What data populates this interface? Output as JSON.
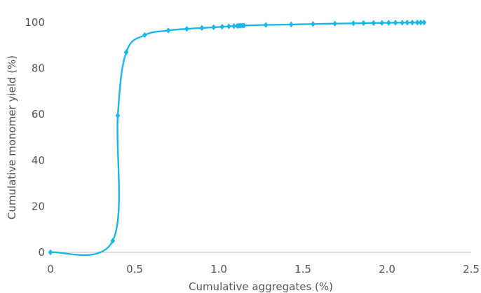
{
  "chart_data": {
    "type": "line",
    "xlabel": "Cumulative aggregates (%)",
    "ylabel": "Cumulative monomer yield (%)",
    "xlim": [
      0,
      2.5
    ],
    "ylim": [
      0,
      100
    ],
    "x_ticks": [
      "0",
      "0.5",
      "1.0",
      "1.5",
      "2.0",
      "2.5"
    ],
    "y_ticks": [
      "0",
      "20",
      "40",
      "60",
      "80",
      "100"
    ],
    "grid": false,
    "legend": "none",
    "marker": "diamond",
    "series": [
      {
        "color": "#1ab7e8",
        "points": [
          [
            0.0,
            0.0
          ],
          [
            0.37,
            5.0
          ],
          [
            0.4,
            59.5
          ],
          [
            0.45,
            87.0
          ],
          [
            0.56,
            94.5
          ],
          [
            0.7,
            96.5
          ],
          [
            0.81,
            97.2
          ],
          [
            0.9,
            97.6
          ],
          [
            0.97,
            97.9
          ],
          [
            1.02,
            98.1
          ],
          [
            1.06,
            98.3
          ],
          [
            1.09,
            98.4
          ],
          [
            1.11,
            98.5
          ],
          [
            1.12,
            98.55
          ],
          [
            1.13,
            98.6
          ],
          [
            1.14,
            98.6
          ],
          [
            1.15,
            98.65
          ],
          [
            1.28,
            98.9
          ],
          [
            1.43,
            99.1
          ],
          [
            1.56,
            99.3
          ],
          [
            1.69,
            99.5
          ],
          [
            1.8,
            99.6
          ],
          [
            1.86,
            99.7
          ],
          [
            1.92,
            99.75
          ],
          [
            1.97,
            99.8
          ],
          [
            2.01,
            99.85
          ],
          [
            2.05,
            99.88
          ],
          [
            2.09,
            99.9
          ],
          [
            2.12,
            99.92
          ],
          [
            2.15,
            99.94
          ],
          [
            2.18,
            99.96
          ],
          [
            2.2,
            99.98
          ],
          [
            2.22,
            100.0
          ]
        ]
      }
    ]
  }
}
